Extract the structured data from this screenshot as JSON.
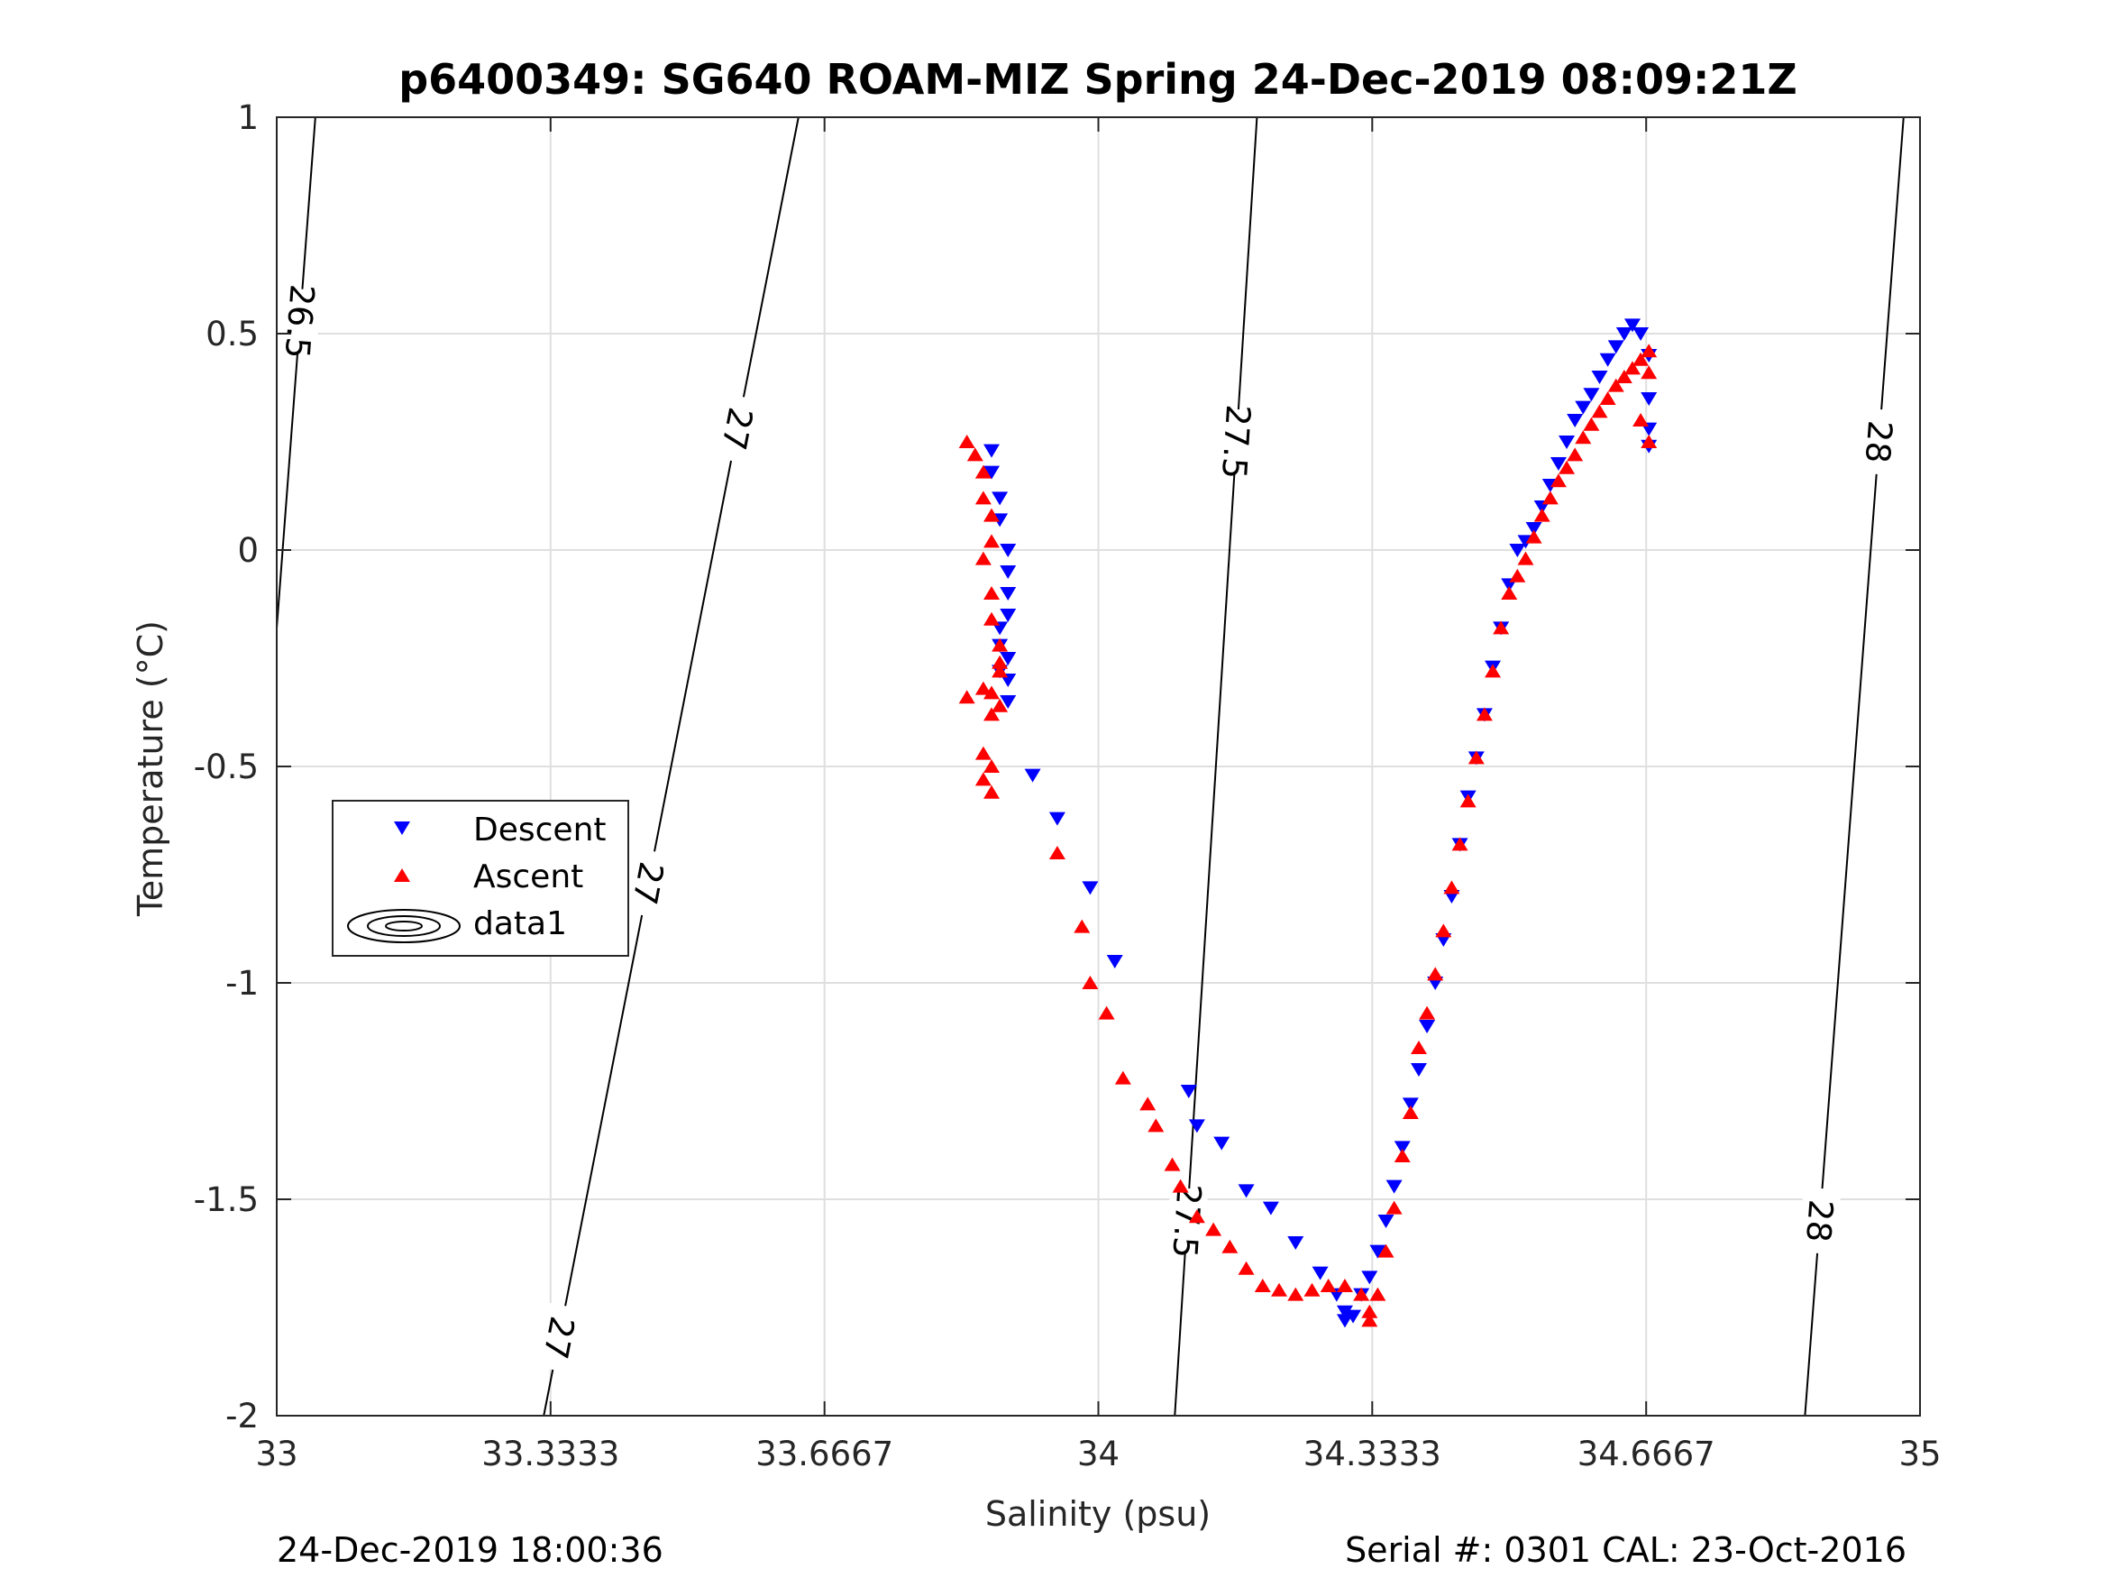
{
  "chart_data": {
    "type": "scatter",
    "title": "p6400349: SG640 ROAM-MIZ Spring 24-Dec-2019 08:09:21Z",
    "xlabel": "Salinity (psu)",
    "ylabel": "Temperature (°C)",
    "xlim": [
      33,
      35
    ],
    "ylim": [
      -2,
      1
    ],
    "xticks": [
      33,
      33.3333,
      33.6667,
      34,
      34.3333,
      34.6667,
      35
    ],
    "xtick_labels": [
      "33",
      "33.3333",
      "33.6667",
      "34",
      "34.3333",
      "34.6667",
      "35"
    ],
    "yticks": [
      -2,
      -1.5,
      -1,
      -0.5,
      0,
      0.5,
      1
    ],
    "ytick_labels": [
      "-2",
      "-1.5",
      "-1",
      "-0.5",
      "0",
      "0.5",
      "1"
    ],
    "grid": true,
    "legend_position": "center-left",
    "series": [
      {
        "name": "Descent",
        "marker": "triangle-down",
        "color": "#0000ff",
        "x": [
          33.87,
          33.87,
          33.88,
          33.88,
          33.89,
          33.89,
          33.89,
          33.88,
          33.88,
          33.89,
          33.89,
          33.88,
          33.89,
          33.89,
          33.92,
          33.95,
          33.99,
          34.02,
          34.11,
          34.12,
          34.15,
          34.18,
          34.21,
          34.24,
          34.27,
          34.29,
          34.3,
          34.3,
          34.31,
          34.32,
          34.33,
          34.34,
          34.35,
          34.36,
          34.37,
          34.38,
          34.39,
          34.4,
          34.41,
          34.42,
          34.43,
          34.44,
          34.45,
          34.46,
          34.47,
          34.48,
          34.49,
          34.5,
          34.51,
          34.52,
          34.53,
          34.54,
          34.55,
          34.56,
          34.57,
          34.58,
          34.59,
          34.6,
          34.61,
          34.62,
          34.63,
          34.64,
          34.65,
          34.66,
          34.67,
          34.67,
          34.67,
          34.67
        ],
        "y": [
          0.23,
          0.18,
          0.12,
          0.07,
          0.0,
          -0.05,
          -0.15,
          -0.22,
          -0.28,
          -0.35,
          -0.25,
          -0.18,
          -0.3,
          -0.1,
          -0.52,
          -0.62,
          -0.78,
          -0.95,
          -1.25,
          -1.33,
          -1.37,
          -1.48,
          -1.52,
          -1.6,
          -1.67,
          -1.72,
          -1.76,
          -1.78,
          -1.77,
          -1.72,
          -1.68,
          -1.62,
          -1.55,
          -1.47,
          -1.38,
          -1.28,
          -1.2,
          -1.1,
          -1.0,
          -0.9,
          -0.8,
          -0.68,
          -0.57,
          -0.48,
          -0.38,
          -0.27,
          -0.18,
          -0.08,
          -0.0,
          0.02,
          0.05,
          0.1,
          0.15,
          0.2,
          0.25,
          0.3,
          0.33,
          0.36,
          0.4,
          0.44,
          0.47,
          0.5,
          0.52,
          0.5,
          0.45,
          0.35,
          0.28,
          0.24
        ]
      },
      {
        "name": "Ascent",
        "marker": "triangle-up",
        "color": "#ff0000",
        "x": [
          33.84,
          33.85,
          33.86,
          33.86,
          33.87,
          33.87,
          33.86,
          33.87,
          33.87,
          33.88,
          33.88,
          33.87,
          33.88,
          33.88,
          33.87,
          33.86,
          33.84,
          33.86,
          33.87,
          33.86,
          33.87,
          33.95,
          33.98,
          33.99,
          34.01,
          34.03,
          34.06,
          34.07,
          34.09,
          34.1,
          34.12,
          34.14,
          34.16,
          34.18,
          34.2,
          34.22,
          34.24,
          34.26,
          34.28,
          34.3,
          34.32,
          34.33,
          34.33,
          34.34,
          34.35,
          34.36,
          34.37,
          34.38,
          34.39,
          34.4,
          34.41,
          34.42,
          34.43,
          34.44,
          34.45,
          34.46,
          34.47,
          34.48,
          34.49,
          34.5,
          34.51,
          34.52,
          34.53,
          34.54,
          34.55,
          34.56,
          34.57,
          34.58,
          34.59,
          34.6,
          34.61,
          34.62,
          34.63,
          34.64,
          34.65,
          34.66,
          34.67,
          34.67,
          34.66,
          34.67
        ],
        "y": [
          0.25,
          0.22,
          0.18,
          0.12,
          0.08,
          0.02,
          -0.02,
          -0.1,
          -0.16,
          -0.22,
          -0.28,
          -0.33,
          -0.36,
          -0.26,
          -0.38,
          -0.32,
          -0.34,
          -0.47,
          -0.5,
          -0.53,
          -0.56,
          -0.7,
          -0.87,
          -1.0,
          -1.07,
          -1.22,
          -1.28,
          -1.33,
          -1.42,
          -1.47,
          -1.54,
          -1.57,
          -1.61,
          -1.66,
          -1.7,
          -1.71,
          -1.72,
          -1.71,
          -1.7,
          -1.7,
          -1.72,
          -1.76,
          -1.78,
          -1.72,
          -1.62,
          -1.52,
          -1.4,
          -1.3,
          -1.15,
          -1.07,
          -0.98,
          -0.88,
          -0.78,
          -0.68,
          -0.58,
          -0.48,
          -0.38,
          -0.28,
          -0.18,
          -0.1,
          -0.06,
          -0.02,
          0.03,
          0.08,
          0.12,
          0.16,
          0.19,
          0.22,
          0.26,
          0.29,
          0.32,
          0.35,
          0.38,
          0.4,
          0.42,
          0.44,
          0.46,
          0.41,
          0.3,
          0.25
        ]
      },
      {
        "name": "data1",
        "type": "contour",
        "color": "#000000",
        "levels": [
          26.5,
          27,
          27.5,
          28
        ],
        "lines": [
          {
            "level": 26.5,
            "points": [
              [
                33.0,
                -0.18
              ],
              [
                33.047,
                1.0
              ]
            ],
            "labels": [
              "26.5"
            ]
          },
          {
            "level": 27,
            "points": [
              [
                33.325,
                -2.0
              ],
              [
                33.375,
                -0.64
              ],
              [
                33.42,
                0.54
              ],
              [
                33.42,
                0.54
              ],
              [
                33.4,
                0.0
              ],
              [
                33.42,
                0.5
              ],
              [
                33.4,
                0.0
              ],
              [
                33.42,
                0.54
              ],
              [
                33.42,
                0.54
              ],
              [
                33.42,
                0.54
              ],
              [
                33.42,
                0.54
              ],
              [
                33.42,
                0.54
              ],
              [
                33.42,
                0.54
              ],
              [
                33.42,
                0.54
              ],
              [
                33.42,
                0.54
              ],
              [
                33.42,
                0.54
              ],
              [
                33.42,
                0.54
              ],
              [
                33.42,
                0.54
              ],
              [
                33.42,
                0.54
              ],
              [
                33.42,
                0.54
              ],
              [
                33.42,
                0.54
              ],
              [
                33.42,
                0.54
              ],
              [
                33.42,
                0.54
              ],
              [
                33.42,
                0.54
              ],
              [
                33.42,
                0.54
              ],
              [
                33.42,
                0.54
              ],
              [
                33.42,
                0.54
              ]
            ],
            "labels": [
              "27",
              "27",
              "27"
            ]
          },
          {
            "level": 27.5,
            "points": [
              [
                34.093,
                -2.0
              ],
              [
                34.193,
                1.0
              ]
            ],
            "labels": [
              "27.5",
              "27.5"
            ]
          },
          {
            "level": 28,
            "points": [
              [
                34.86,
                -2.0
              ],
              [
                34.98,
                1.0
              ]
            ],
            "labels": [
              "28",
              "28"
            ]
          }
        ]
      }
    ],
    "footer_left": "24-Dec-2019 18:00:36",
    "footer_right": "Serial #: 0301  CAL: 23-Oct-2016"
  }
}
